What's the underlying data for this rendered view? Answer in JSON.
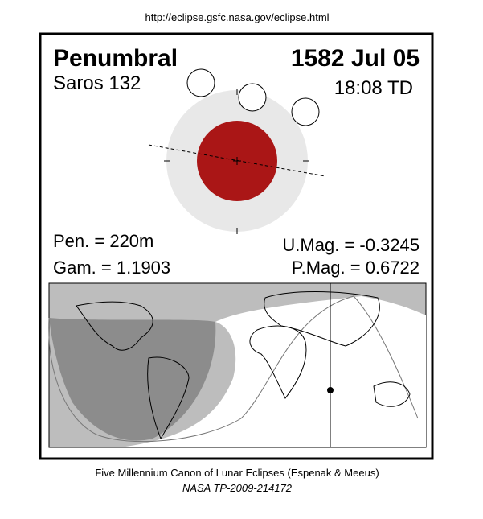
{
  "header": {
    "url": "http://eclipse.gsfc.nasa.gov/eclipse.html"
  },
  "eclipse": {
    "type": "Penumbral",
    "date": "1582 Jul 05",
    "saros": "Saros 132",
    "time": "18:08 TD",
    "pen": "Pen. = 220m",
    "gam": "Gam. = 1.1903",
    "umag": "U.Mag. = -0.3245",
    "pmag": "P.Mag. = 0.6722"
  },
  "footer": {
    "line1": "Five Millennium Canon of Lunar Eclipses (Espenak & Meeus)",
    "line2": "NASA TP-2009-214172"
  }
}
